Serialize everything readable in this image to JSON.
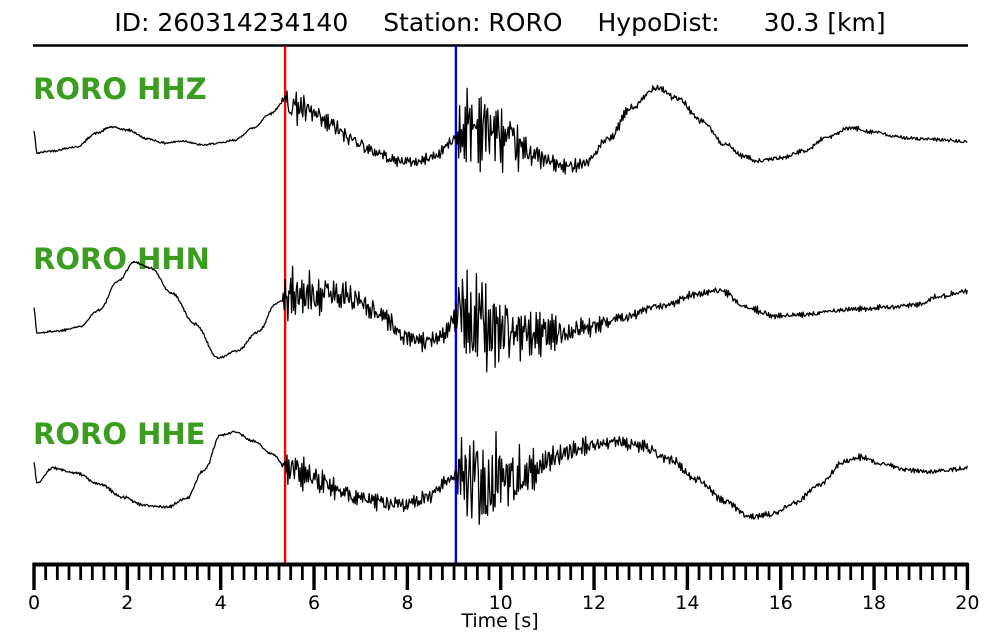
{
  "title": {
    "parts": [
      "ID: 260314234140",
      "Station: RORO",
      "HypoDist:",
      "30.3 [km]"
    ]
  },
  "labels": {
    "hhz": "RORO HHZ",
    "hhn": "RORO HHN",
    "hhe": "RORO HHE"
  },
  "colors": {
    "trace": "#000000",
    "channel_label": "#3a9d20",
    "p_pick": "#ff0000",
    "s_pick": "#0000ee",
    "axis": "#000000",
    "title": "#000000",
    "background": "#ffffff"
  },
  "chart_data": {
    "type": "line",
    "kind": "three-channel seismogram with P and S picks",
    "event_id": "260314234140",
    "station": "RORO",
    "hypodist_km": 30.3,
    "time_axis": {
      "label": "Time [s]",
      "range_s": [
        0,
        20
      ],
      "major_ticks": [
        0,
        2,
        4,
        6,
        8,
        10,
        12,
        14,
        16,
        18,
        20
      ],
      "minor_step_s": 0.25
    },
    "picks": {
      "p_time_s": 5.38,
      "s_time_s": 9.04
    },
    "series": [
      {
        "channel": "HHZ",
        "seed": 42,
        "lf_path": [
          [
            0,
            131
          ],
          [
            0.06,
            153
          ],
          [
            0.35,
            151
          ],
          [
            0.9,
            147
          ],
          [
            1.35,
            133
          ],
          [
            1.65,
            127
          ],
          [
            2.0,
            130
          ],
          [
            2.45,
            139
          ],
          [
            2.8,
            143
          ],
          [
            3.2,
            141
          ],
          [
            3.6,
            145
          ],
          [
            4.0,
            143
          ],
          [
            4.3,
            140
          ],
          [
            4.7,
            128
          ],
          [
            5.05,
            114
          ],
          [
            5.38,
            101
          ],
          [
            5.6,
            106
          ],
          [
            5.9,
            113
          ],
          [
            6.3,
            124
          ],
          [
            6.8,
            139
          ],
          [
            7.3,
            152
          ],
          [
            7.8,
            161
          ],
          [
            8.2,
            162
          ],
          [
            8.6,
            156
          ],
          [
            8.9,
            144
          ],
          [
            9.05,
            136
          ],
          [
            9.35,
            125
          ],
          [
            9.7,
            128
          ],
          [
            10.1,
            140
          ],
          [
            10.6,
            152
          ],
          [
            11.0,
            161
          ],
          [
            11.35,
            167
          ],
          [
            11.8,
            163
          ],
          [
            12.3,
            140
          ],
          [
            12.8,
            108
          ],
          [
            13.35,
            87
          ],
          [
            13.8,
            99
          ],
          [
            14.3,
            121
          ],
          [
            14.8,
            144
          ],
          [
            15.2,
            156
          ],
          [
            15.5,
            161
          ],
          [
            16.0,
            158
          ],
          [
            16.5,
            151
          ],
          [
            17.0,
            137
          ],
          [
            17.5,
            128
          ],
          [
            18.0,
            132
          ],
          [
            18.5,
            137
          ],
          [
            19.0,
            139
          ],
          [
            19.5,
            140
          ],
          [
            20,
            142
          ]
        ],
        "noise_amp": [
          [
            0,
            1.6
          ],
          [
            4.6,
            1.6
          ],
          [
            5.3,
            1.4
          ],
          [
            5.42,
            26
          ],
          [
            5.8,
            22
          ],
          [
            6.3,
            15
          ],
          [
            6.9,
            11
          ],
          [
            7.5,
            8
          ],
          [
            8.1,
            7
          ],
          [
            8.6,
            7
          ],
          [
            9.0,
            8
          ],
          [
            9.12,
            42
          ],
          [
            9.45,
            58
          ],
          [
            9.8,
            50
          ],
          [
            10.2,
            34
          ],
          [
            10.7,
            18
          ],
          [
            11.2,
            11
          ],
          [
            11.8,
            8
          ],
          [
            12.4,
            6
          ],
          [
            13.1,
            6
          ],
          [
            13.8,
            5
          ],
          [
            14.5,
            4
          ],
          [
            15.3,
            3
          ],
          [
            16.1,
            2.6
          ],
          [
            17.0,
            3
          ],
          [
            18.0,
            3
          ],
          [
            19.0,
            2.6
          ],
          [
            20,
            2.6
          ]
        ]
      },
      {
        "channel": "HHN",
        "seed": 1337,
        "lf_path": [
          [
            0,
            307
          ],
          [
            0.06,
            333
          ],
          [
            0.5,
            331
          ],
          [
            0.95,
            327
          ],
          [
            1.4,
            310
          ],
          [
            1.8,
            281
          ],
          [
            2.15,
            262
          ],
          [
            2.5,
            268
          ],
          [
            2.95,
            293
          ],
          [
            3.45,
            324
          ],
          [
            3.95,
            358
          ],
          [
            4.35,
            351
          ],
          [
            4.8,
            332
          ],
          [
            5.2,
            303
          ],
          [
            5.38,
            297
          ],
          [
            5.9,
            295
          ],
          [
            6.4,
            293
          ],
          [
            6.9,
            299
          ],
          [
            7.4,
            313
          ],
          [
            7.95,
            337
          ],
          [
            8.4,
            343
          ],
          [
            8.75,
            334
          ],
          [
            9.05,
            316
          ],
          [
            9.45,
            321
          ],
          [
            10.0,
            329
          ],
          [
            10.6,
            335
          ],
          [
            11.2,
            333
          ],
          [
            11.9,
            327
          ],
          [
            12.6,
            317
          ],
          [
            13.4,
            307
          ],
          [
            14.2,
            294
          ],
          [
            14.7,
            291
          ],
          [
            15.3,
            308
          ],
          [
            15.9,
            316
          ],
          [
            16.5,
            315
          ],
          [
            17.1,
            311
          ],
          [
            17.7,
            309
          ],
          [
            18.3,
            307
          ],
          [
            18.9,
            305
          ],
          [
            19.4,
            296
          ],
          [
            20,
            291
          ]
        ],
        "noise_amp": [
          [
            0,
            1.7
          ],
          [
            5.28,
            1.8
          ],
          [
            5.42,
            42
          ],
          [
            5.85,
            32
          ],
          [
            6.35,
            24
          ],
          [
            6.9,
            19
          ],
          [
            7.5,
            15
          ],
          [
            8.1,
            12
          ],
          [
            8.6,
            11
          ],
          [
            9.0,
            12
          ],
          [
            9.12,
            56
          ],
          [
            9.5,
            68
          ],
          [
            9.95,
            58
          ],
          [
            10.4,
            40
          ],
          [
            10.9,
            26
          ],
          [
            11.5,
            15
          ],
          [
            12.1,
            10
          ],
          [
            12.8,
            7
          ],
          [
            13.6,
            6
          ],
          [
            14.4,
            5
          ],
          [
            15.2,
            4.5
          ],
          [
            16.0,
            4
          ],
          [
            16.8,
            3.6
          ],
          [
            17.6,
            3.4
          ],
          [
            18.4,
            3.2
          ],
          [
            19.2,
            3.4
          ],
          [
            20,
            4
          ]
        ]
      },
      {
        "channel": "HHE",
        "seed": 2024,
        "lf_path": [
          [
            0,
            463
          ],
          [
            0.06,
            483
          ],
          [
            0.4,
            468
          ],
          [
            0.9,
            473
          ],
          [
            1.4,
            484
          ],
          [
            1.9,
            497
          ],
          [
            2.35,
            505
          ],
          [
            2.85,
            507
          ],
          [
            3.25,
            499
          ],
          [
            3.65,
            470
          ],
          [
            4.0,
            435
          ],
          [
            4.3,
            432
          ],
          [
            4.7,
            441
          ],
          [
            5.1,
            454
          ],
          [
            5.38,
            466
          ],
          [
            5.9,
            476
          ],
          [
            6.4,
            487
          ],
          [
            6.9,
            497
          ],
          [
            7.4,
            503
          ],
          [
            7.9,
            505
          ],
          [
            8.4,
            498
          ],
          [
            8.8,
            484
          ],
          [
            9.05,
            476
          ],
          [
            9.5,
            480
          ],
          [
            10.0,
            481
          ],
          [
            10.6,
            471
          ],
          [
            11.2,
            456
          ],
          [
            11.8,
            447
          ],
          [
            12.4,
            442
          ],
          [
            13.0,
            446
          ],
          [
            13.6,
            459
          ],
          [
            14.2,
            479
          ],
          [
            14.8,
            501
          ],
          [
            15.35,
            517
          ],
          [
            15.8,
            514
          ],
          [
            16.3,
            503
          ],
          [
            16.8,
            486
          ],
          [
            17.35,
            462
          ],
          [
            17.7,
            457
          ],
          [
            18.2,
            464
          ],
          [
            18.7,
            470
          ],
          [
            19.2,
            472
          ],
          [
            19.6,
            470
          ],
          [
            20,
            468
          ]
        ],
        "noise_amp": [
          [
            0,
            1.6
          ],
          [
            2.0,
            2.4
          ],
          [
            3.0,
            2.2
          ],
          [
            5.3,
            1.5
          ],
          [
            5.42,
            25
          ],
          [
            5.85,
            20
          ],
          [
            6.35,
            15
          ],
          [
            6.9,
            12
          ],
          [
            7.5,
            11
          ],
          [
            8.1,
            10
          ],
          [
            8.6,
            10
          ],
          [
            9.0,
            12
          ],
          [
            9.15,
            62
          ],
          [
            9.5,
            76
          ],
          [
            9.9,
            70
          ],
          [
            10.3,
            46
          ],
          [
            10.8,
            26
          ],
          [
            11.4,
            15
          ],
          [
            12.0,
            11
          ],
          [
            12.6,
            9
          ],
          [
            13.2,
            8
          ],
          [
            13.9,
            6
          ],
          [
            14.6,
            5
          ],
          [
            15.3,
            4.5
          ],
          [
            16.1,
            4
          ],
          [
            16.9,
            4
          ],
          [
            17.7,
            4
          ],
          [
            18.5,
            3.4
          ],
          [
            19.2,
            3
          ],
          [
            20,
            3.4
          ]
        ]
      }
    ]
  }
}
